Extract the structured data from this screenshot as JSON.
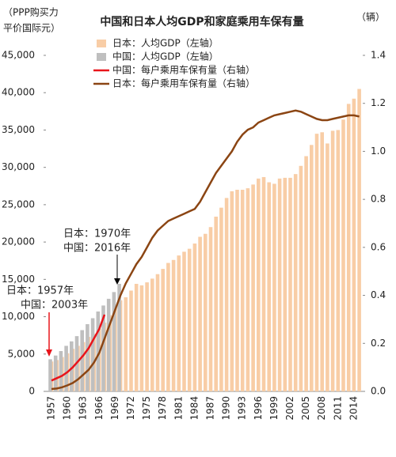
{
  "chart_data": {
    "type": "bar",
    "title": "中国和日本人均GDP和家庭乘用车保有量",
    "y_label": [
      "（PPP购买力",
      "平价国际元）"
    ],
    "y2_label": "（辆）",
    "categories": [
      "1957",
      null,
      null,
      "1960",
      null,
      null,
      "1963",
      null,
      null,
      "1966",
      null,
      null,
      "1969",
      null,
      null,
      "1972",
      null,
      null,
      "1975",
      null,
      null,
      "1978",
      null,
      null,
      "1981",
      null,
      null,
      "1984",
      null,
      null,
      "1987",
      null,
      null,
      "1990",
      null,
      null,
      "1993",
      null,
      null,
      "1996",
      null,
      null,
      "1999",
      null,
      null,
      "2002",
      null,
      null,
      "2005",
      null,
      null,
      "2008",
      null,
      null,
      "2011",
      null,
      null,
      "2014",
      null
    ],
    "series": [
      {
        "name": "日本：人均GDP（左轴）",
        "type": "bar",
        "color": "#f8cda6",
        "axis": "y",
        "values": [
          4000,
          4200,
          4600,
          5100,
          5700,
          6100,
          6600,
          7300,
          7700,
          8400,
          9200,
          10200,
          11200,
          12200,
          12600,
          13500,
          14400,
          14200,
          14600,
          15100,
          15700,
          16400,
          17200,
          17600,
          18200,
          18700,
          19100,
          19800,
          20700,
          21100,
          22000,
          23400,
          24600,
          25900,
          26800,
          27000,
          27000,
          27200,
          27700,
          28500,
          28700,
          28000,
          27800,
          28500,
          28600,
          28600,
          29100,
          30200,
          31500,
          33000,
          34500,
          34700,
          33200,
          34900,
          35000,
          36400,
          38500,
          39200,
          40500
        ]
      },
      {
        "name": "中国：人均GDP（左轴）",
        "type": "bar",
        "color": "#bfbfbf",
        "axis": "y",
        "values": [
          4300,
          4800,
          5400,
          6100,
          6700,
          7400,
          8200,
          9000,
          9800,
          10700,
          11500,
          12400,
          13300,
          14400,
          null,
          null,
          null,
          null,
          null,
          null,
          null,
          null,
          null,
          null,
          null,
          null,
          null,
          null,
          null,
          null,
          null,
          null,
          null,
          null,
          null,
          null,
          null,
          null,
          null,
          null,
          null,
          null,
          null,
          null,
          null,
          null,
          null,
          null,
          null,
          null,
          null,
          null,
          null,
          null,
          null,
          null,
          null,
          null,
          null
        ]
      },
      {
        "name": "中国：每户乘用车保有量（右轴）",
        "type": "line",
        "color": "#e8141b",
        "axis": "y2",
        "values": [
          0.045,
          0.055,
          0.065,
          0.08,
          0.1,
          0.125,
          0.15,
          0.18,
          0.22,
          0.26,
          0.32,
          null,
          null,
          null,
          null,
          null,
          null,
          null,
          null,
          null,
          null,
          null,
          null,
          null,
          null,
          null,
          null,
          null,
          null,
          null,
          null,
          null,
          null,
          null,
          null,
          null,
          null,
          null,
          null,
          null,
          null,
          null,
          null,
          null,
          null,
          null,
          null,
          null,
          null,
          null,
          null,
          null,
          null,
          null,
          null,
          null,
          null,
          null,
          null
        ]
      },
      {
        "name": "日本：每户乘用车保有量（右轴）",
        "type": "line",
        "color": "#8b4513",
        "axis": "y2",
        "values": [
          0.01,
          0.012,
          0.017,
          0.025,
          0.035,
          0.05,
          0.07,
          0.09,
          0.12,
          0.16,
          0.22,
          0.28,
          0.34,
          0.4,
          0.45,
          0.49,
          0.53,
          0.56,
          0.6,
          0.64,
          0.67,
          0.69,
          0.71,
          0.72,
          0.73,
          0.74,
          0.75,
          0.76,
          0.79,
          0.83,
          0.87,
          0.91,
          0.94,
          0.97,
          1.0,
          1.04,
          1.07,
          1.09,
          1.1,
          1.12,
          1.13,
          1.14,
          1.15,
          1.155,
          1.16,
          1.165,
          1.17,
          1.165,
          1.155,
          1.145,
          1.135,
          1.13,
          1.13,
          1.135,
          1.14,
          1.145,
          1.15,
          1.15,
          1.145
        ]
      }
    ],
    "ylim": [
      0,
      45000
    ],
    "yticks": [
      0,
      {
        "value": 5000,
        "label": "5,000"
      },
      {
        "value": 10000,
        "label": "10,000"
      },
      {
        "value": 15000,
        "label": "15,000"
      },
      {
        "value": 20000,
        "label": "20,000"
      },
      {
        "value": 25000,
        "label": "25,000"
      },
      {
        "value": 30000,
        "label": "30,000"
      },
      {
        "value": 35000,
        "label": "35,000"
      },
      {
        "value": 40000,
        "label": "40,000"
      },
      {
        "value": 45000,
        "label": "45,000"
      }
    ],
    "y2lim": [
      0,
      1.4
    ],
    "y2ticks": [
      {
        "value": 0,
        "label": "0.0"
      },
      0.2,
      0.4,
      0.6,
      0.8,
      {
        "value": 1,
        "label": "1.0"
      },
      1.2,
      1.4
    ],
    "annotations": [
      {
        "text": [
          "日本：1970年",
          "中国：2016年"
        ],
        "color": "#e8141b"
      },
      {
        "text": [
          "日本：1957年",
          "中国：2003年"
        ],
        "color": "#e8141b"
      }
    ]
  }
}
